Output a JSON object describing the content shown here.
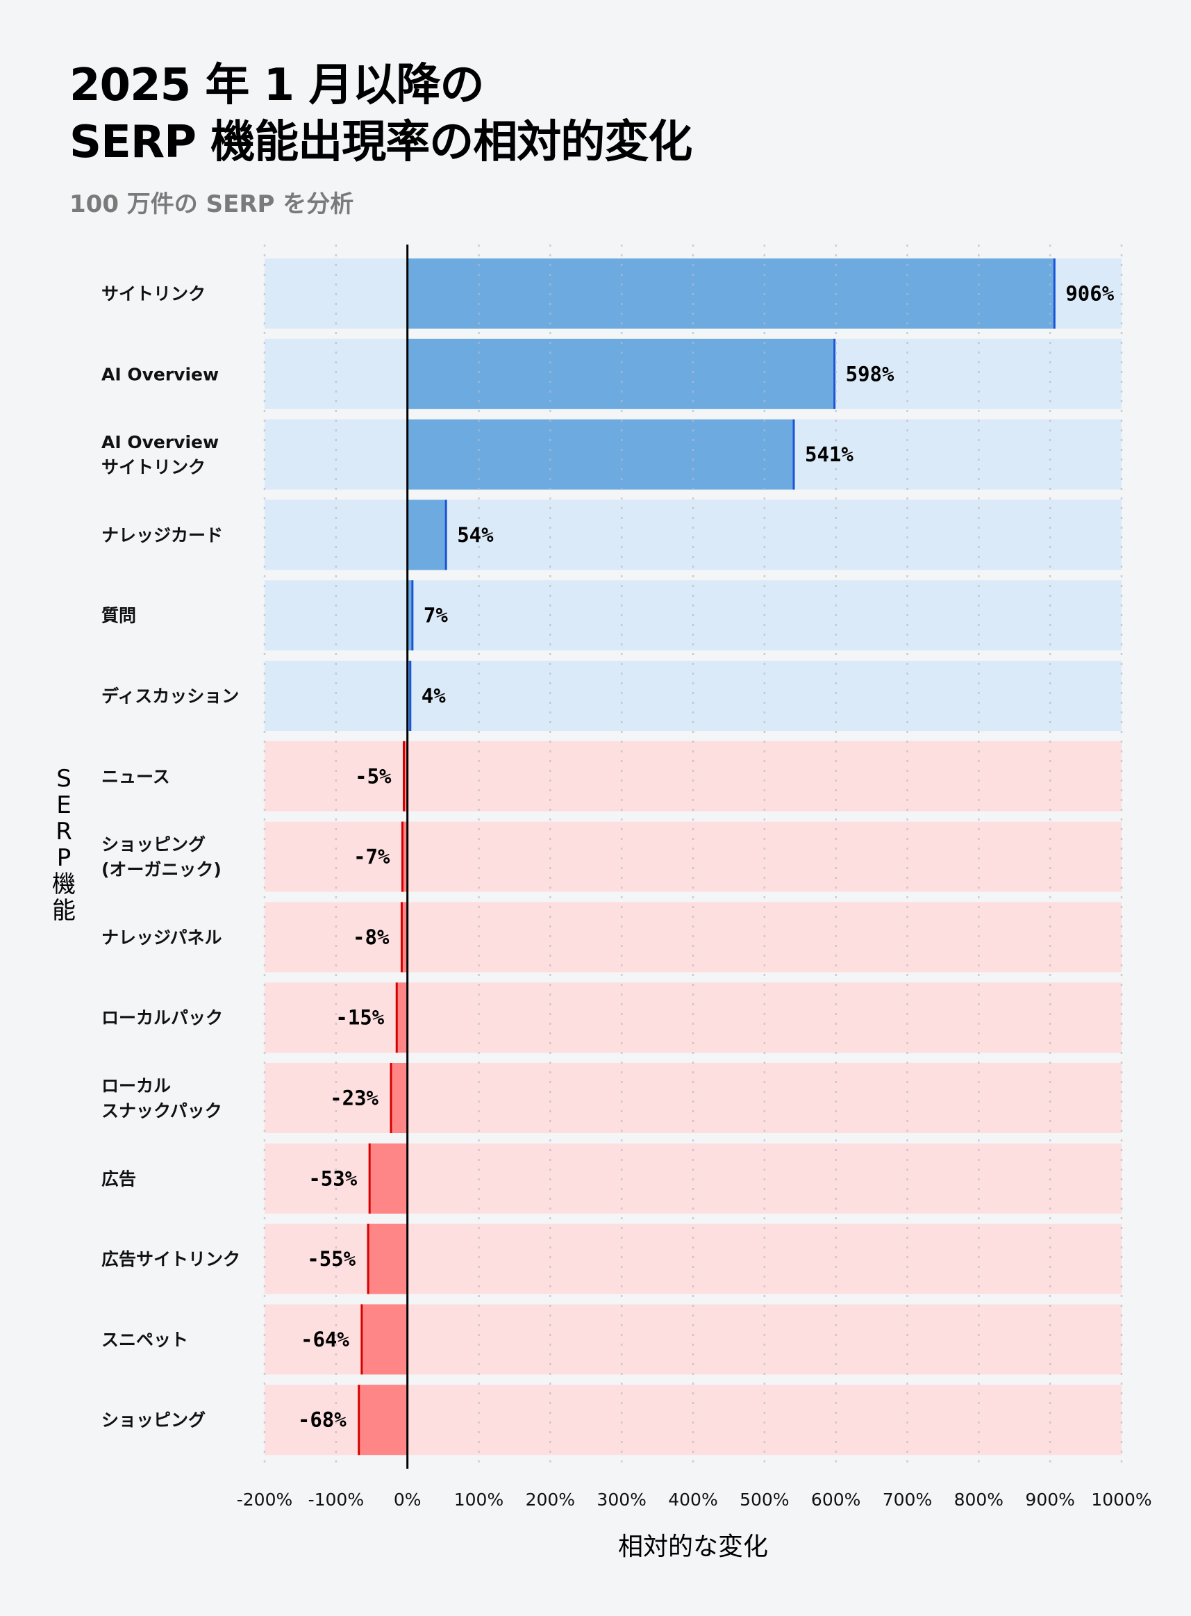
{
  "chart_data": {
    "type": "bar",
    "orientation": "horizontal",
    "title": "2025 年 1 月以降の\nSERP 機能出現率の相対的変化",
    "subtitle": "100 万件の SERP を分析",
    "xlabel": "相対的な変化",
    "ylabel": "SERP機能",
    "xlim": [
      -200,
      1000
    ],
    "xticks": [
      -200,
      -100,
      0,
      100,
      200,
      300,
      400,
      500,
      600,
      700,
      800,
      900,
      1000
    ],
    "xtick_labels": [
      "-200%",
      "-100%",
      "0%",
      "100%",
      "200%",
      "300%",
      "400%",
      "500%",
      "600%",
      "700%",
      "800%",
      "900%",
      "1000%"
    ],
    "grid": "vertical dotted",
    "categories": [
      "サイトリンク",
      "AI Overview",
      "AI Overview\nサイトリンク",
      "ナレッジカード",
      "質問",
      "ディスカッション",
      "ニュース",
      "ショッピング\n(オーガニック)",
      "ナレッジパネル",
      "ローカルパック",
      "ローカル\nスナックパック",
      "広告",
      "広告サイトリンク",
      "スニペット",
      "ショッピング"
    ],
    "values": [
      906,
      598,
      541,
      54,
      7,
      4,
      -5,
      -7,
      -8,
      -15,
      -23,
      -53,
      -55,
      -64,
      -68
    ],
    "value_labels": [
      "906%",
      "598%",
      "541%",
      "54%",
      "7%",
      "4%",
      "-5%",
      "-7%",
      "-8%",
      "-15%",
      "-23%",
      "-53%",
      "-55%",
      "-64%",
      "-68%"
    ],
    "colors": {
      "background": "#f4f5f7",
      "positive_band": "#dbeaf8",
      "positive_bar": "#6caae0",
      "positive_edge": "#1a55d6",
      "negative_band": "#fddfe0",
      "negative_bar": "#ff8686",
      "negative_edge": "#d40000"
    }
  }
}
